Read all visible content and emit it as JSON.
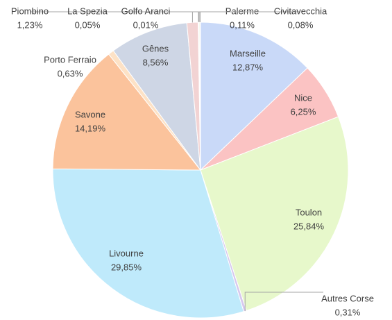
{
  "chart_data": {
    "type": "pie",
    "categories": [
      "Marseille",
      "Nice",
      "Toulon",
      "Autres Corse",
      "Livourne",
      "Savone",
      "Porto Ferraio",
      "Gênes",
      "Piombino",
      "La Spezia",
      "Golfo Aranci",
      "Palerme",
      "Civitavecchia"
    ],
    "values": [
      12.87,
      6.25,
      25.84,
      0.31,
      29.85,
      14.19,
      0.63,
      8.56,
      1.23,
      0.05,
      0.01,
      0.11,
      0.08
    ],
    "value_labels": [
      "12,87%",
      "6,25%",
      "25,84%",
      "0,31%",
      "29,85%",
      "14,19%",
      "0,63%",
      "8,56%",
      "1,23%",
      "0,05%",
      "0,01%",
      "0,11%",
      "0,08%"
    ],
    "colors": [
      "#c9d9f8",
      "#fbc3c3",
      "#e7f8cb",
      "#d6c8ee",
      "#bfeafb",
      "#fbc39c",
      "#fde2c6",
      "#ced6e5",
      "#f2d3d3",
      "#f7e0e0",
      "#e2ecd0",
      "#edf5dc",
      "#dce7f5"
    ]
  }
}
